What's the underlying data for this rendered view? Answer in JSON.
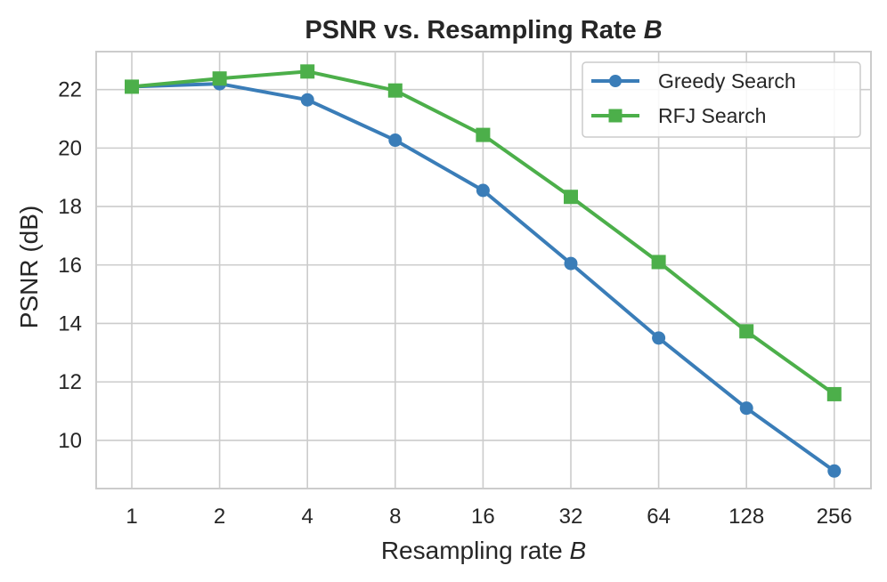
{
  "chart_data": {
    "type": "line",
    "title": "PSNR vs. Resampling Rate",
    "title_italic_var": "B",
    "xlabel": "Resampling rate",
    "xlabel_italic_var": "B",
    "ylabel": "PSNR (dB)",
    "categories": [
      "1",
      "2",
      "4",
      "8",
      "16",
      "32",
      "64",
      "128",
      "256"
    ],
    "ylim": [
      8.35,
      23.3
    ],
    "yticks": [
      "10",
      "12",
      "14",
      "16",
      "18",
      "20",
      "22"
    ],
    "grid": true,
    "legend_position": "top-right",
    "series": [
      {
        "name": "Greedy Search",
        "marker": "circle",
        "color": "#3A7DB8",
        "values": [
          22.1,
          22.2,
          21.65,
          20.27,
          18.55,
          16.05,
          13.5,
          11.1,
          8.95
        ]
      },
      {
        "name": "RFJ Search",
        "marker": "square",
        "color": "#4CAF4A",
        "values": [
          22.1,
          22.38,
          22.62,
          21.97,
          20.45,
          18.33,
          16.1,
          13.73,
          11.58
        ]
      }
    ]
  }
}
